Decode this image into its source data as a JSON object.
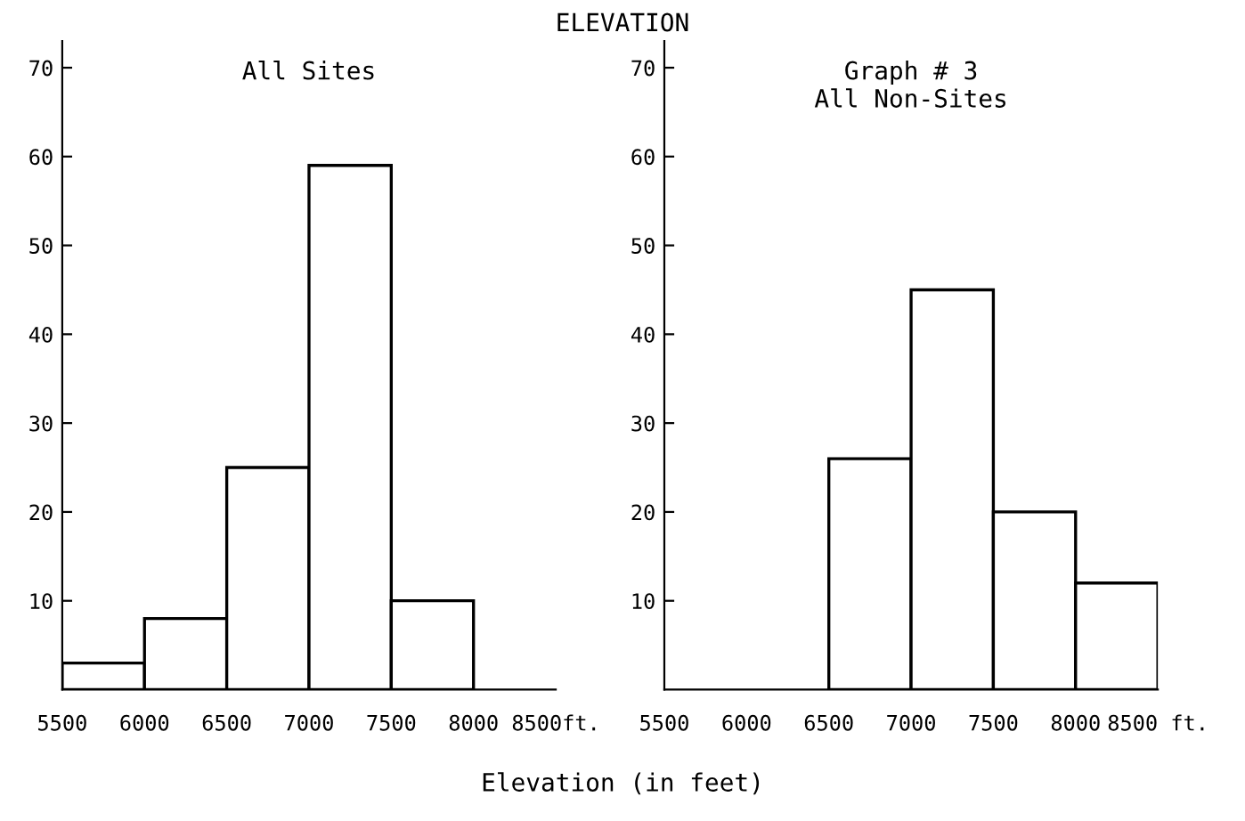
{
  "chart_data": [
    {
      "type": "histogram",
      "title": "All Sites",
      "annotations": [
        "ELEVATION"
      ],
      "bins": [
        5500,
        6000,
        6500,
        7000,
        7500,
        8000
      ],
      "values": [
        3,
        8,
        25,
        59,
        10
      ],
      "xlim": [
        5500,
        8500
      ],
      "xticks": [
        5500,
        6000,
        6500,
        7000,
        7500,
        8000,
        {
          "value": 8500,
          "label": "8500ft."
        }
      ],
      "ylim": [
        0,
        73
      ],
      "yticks": [
        10,
        20,
        30,
        40,
        50,
        60,
        70
      ],
      "grid": false
    },
    {
      "type": "histogram",
      "title": "Graph # 3\nAll Non-Sites",
      "xlabel": "Elevation (in feet)",
      "bins": [
        6500,
        7000,
        7500,
        8000,
        8500
      ],
      "values": [
        26,
        45,
        20,
        12
      ],
      "xlim": [
        5500,
        8500
      ],
      "xticks": [
        5500,
        6000,
        6500,
        7000,
        7500,
        8000,
        {
          "value": 8500,
          "label": "8500 ft."
        }
      ],
      "ylim": [
        0,
        73
      ],
      "yticks": [
        10,
        20,
        30,
        40,
        50,
        60,
        70
      ],
      "grid": false
    }
  ]
}
